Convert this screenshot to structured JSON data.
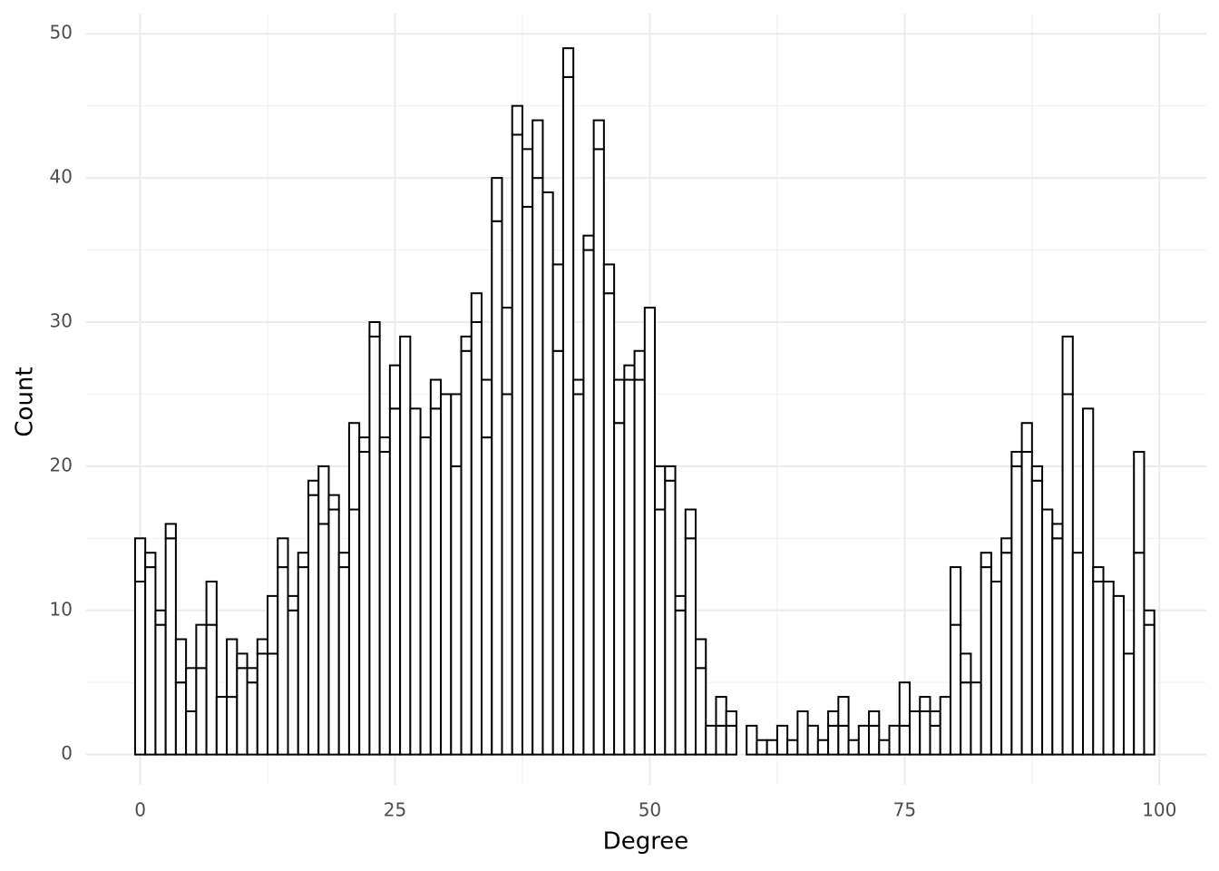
{
  "chart_data": {
    "type": "histogram",
    "x_label": "Degree",
    "y_label": "Count",
    "bins": [
      -0.5,
      0.5,
      1.5,
      2.5,
      3.5,
      4.5,
      5.5,
      6.5,
      7.5,
      8.5,
      9.5,
      10.5,
      11.5,
      12.5,
      13.5,
      14.5,
      15.5,
      16.5,
      17.5,
      18.5,
      19.5,
      20.5,
      21.5,
      22.5,
      23.5,
      24.5,
      25.5,
      26.5,
      27.5,
      28.5,
      29.5,
      30.5,
      31.5,
      32.5,
      33.5,
      34.5,
      35.5,
      36.5,
      37.5,
      38.5,
      39.5,
      40.5,
      41.5,
      42.5,
      43.5,
      44.5,
      45.5,
      46.5,
      47.5,
      48.5,
      49.5,
      50.5,
      51.5,
      52.5,
      53.5,
      54.5,
      55.5,
      56.5,
      57.5,
      58.5,
      59.5,
      60.5,
      61.5,
      62.5,
      63.5,
      64.5,
      65.5,
      66.5,
      67.5,
      68.5,
      69.5,
      70.5,
      71.5,
      72.5,
      73.5,
      74.5,
      75.5,
      76.5,
      77.5,
      78.5,
      79.5,
      80.5,
      81.5,
      82.5,
      83.5,
      84.5,
      85.5,
      86.5,
      87.5,
      88.5,
      89.5,
      90.5,
      91.5,
      92.5,
      93.5,
      94.5,
      95.5,
      96.5,
      97.5,
      98.5,
      99.5
    ],
    "series": [
      {
        "color": "#ffffff",
        "values": [
          12,
          13,
          9,
          15,
          5,
          3,
          6,
          9,
          4,
          4,
          6,
          5,
          7,
          7,
          13,
          10,
          13,
          18,
          16,
          17,
          13,
          17,
          21,
          29,
          21,
          24,
          29,
          24,
          22,
          24,
          25,
          20,
          28,
          30,
          22,
          37,
          25,
          43,
          38,
          40,
          39,
          28,
          47,
          25,
          35,
          42,
          32,
          23,
          26,
          26,
          31,
          17,
          19,
          10,
          15,
          6,
          2,
          2,
          2,
          0,
          2,
          1,
          1,
          2,
          1,
          3,
          2,
          1,
          2,
          2,
          1,
          2,
          2,
          1,
          2,
          2,
          3,
          3,
          2,
          4,
          9,
          5,
          5,
          13,
          12,
          14,
          20,
          21,
          19,
          17,
          15,
          25,
          14,
          24,
          12,
          12,
          11,
          7,
          14,
          9
        ]
      },
      {
        "color": "#ffffff",
        "values": [
          3,
          1,
          1,
          1,
          3,
          3,
          3,
          3,
          0,
          4,
          1,
          1,
          1,
          4,
          2,
          1,
          1,
          1,
          4,
          1,
          1,
          6,
          1,
          1,
          1,
          3,
          0,
          0,
          0,
          2,
          0,
          5,
          1,
          2,
          4,
          3,
          6,
          2,
          4,
          4,
          0,
          6,
          2,
          1,
          1,
          2,
          2,
          3,
          1,
          2,
          0,
          3,
          1,
          1,
          2,
          2,
          0,
          2,
          1,
          0,
          0,
          0,
          0,
          0,
          0,
          0,
          0,
          0,
          1,
          2,
          0,
          0,
          1,
          0,
          0,
          3,
          0,
          1,
          1,
          0,
          4,
          2,
          0,
          1,
          0,
          1,
          1,
          2,
          1,
          0,
          1,
          4,
          0,
          0,
          1,
          0,
          0,
          0,
          7,
          1
        ]
      }
    ],
    "stroke": "#000000",
    "xlim": [
      -5.3,
      104.6
    ],
    "xticks": [
      0,
      25,
      50,
      75,
      100
    ],
    "ylim": [
      -2.1,
      51.4
    ],
    "yticks": [
      0,
      10,
      20,
      30,
      40,
      50
    ],
    "grid": true
  }
}
